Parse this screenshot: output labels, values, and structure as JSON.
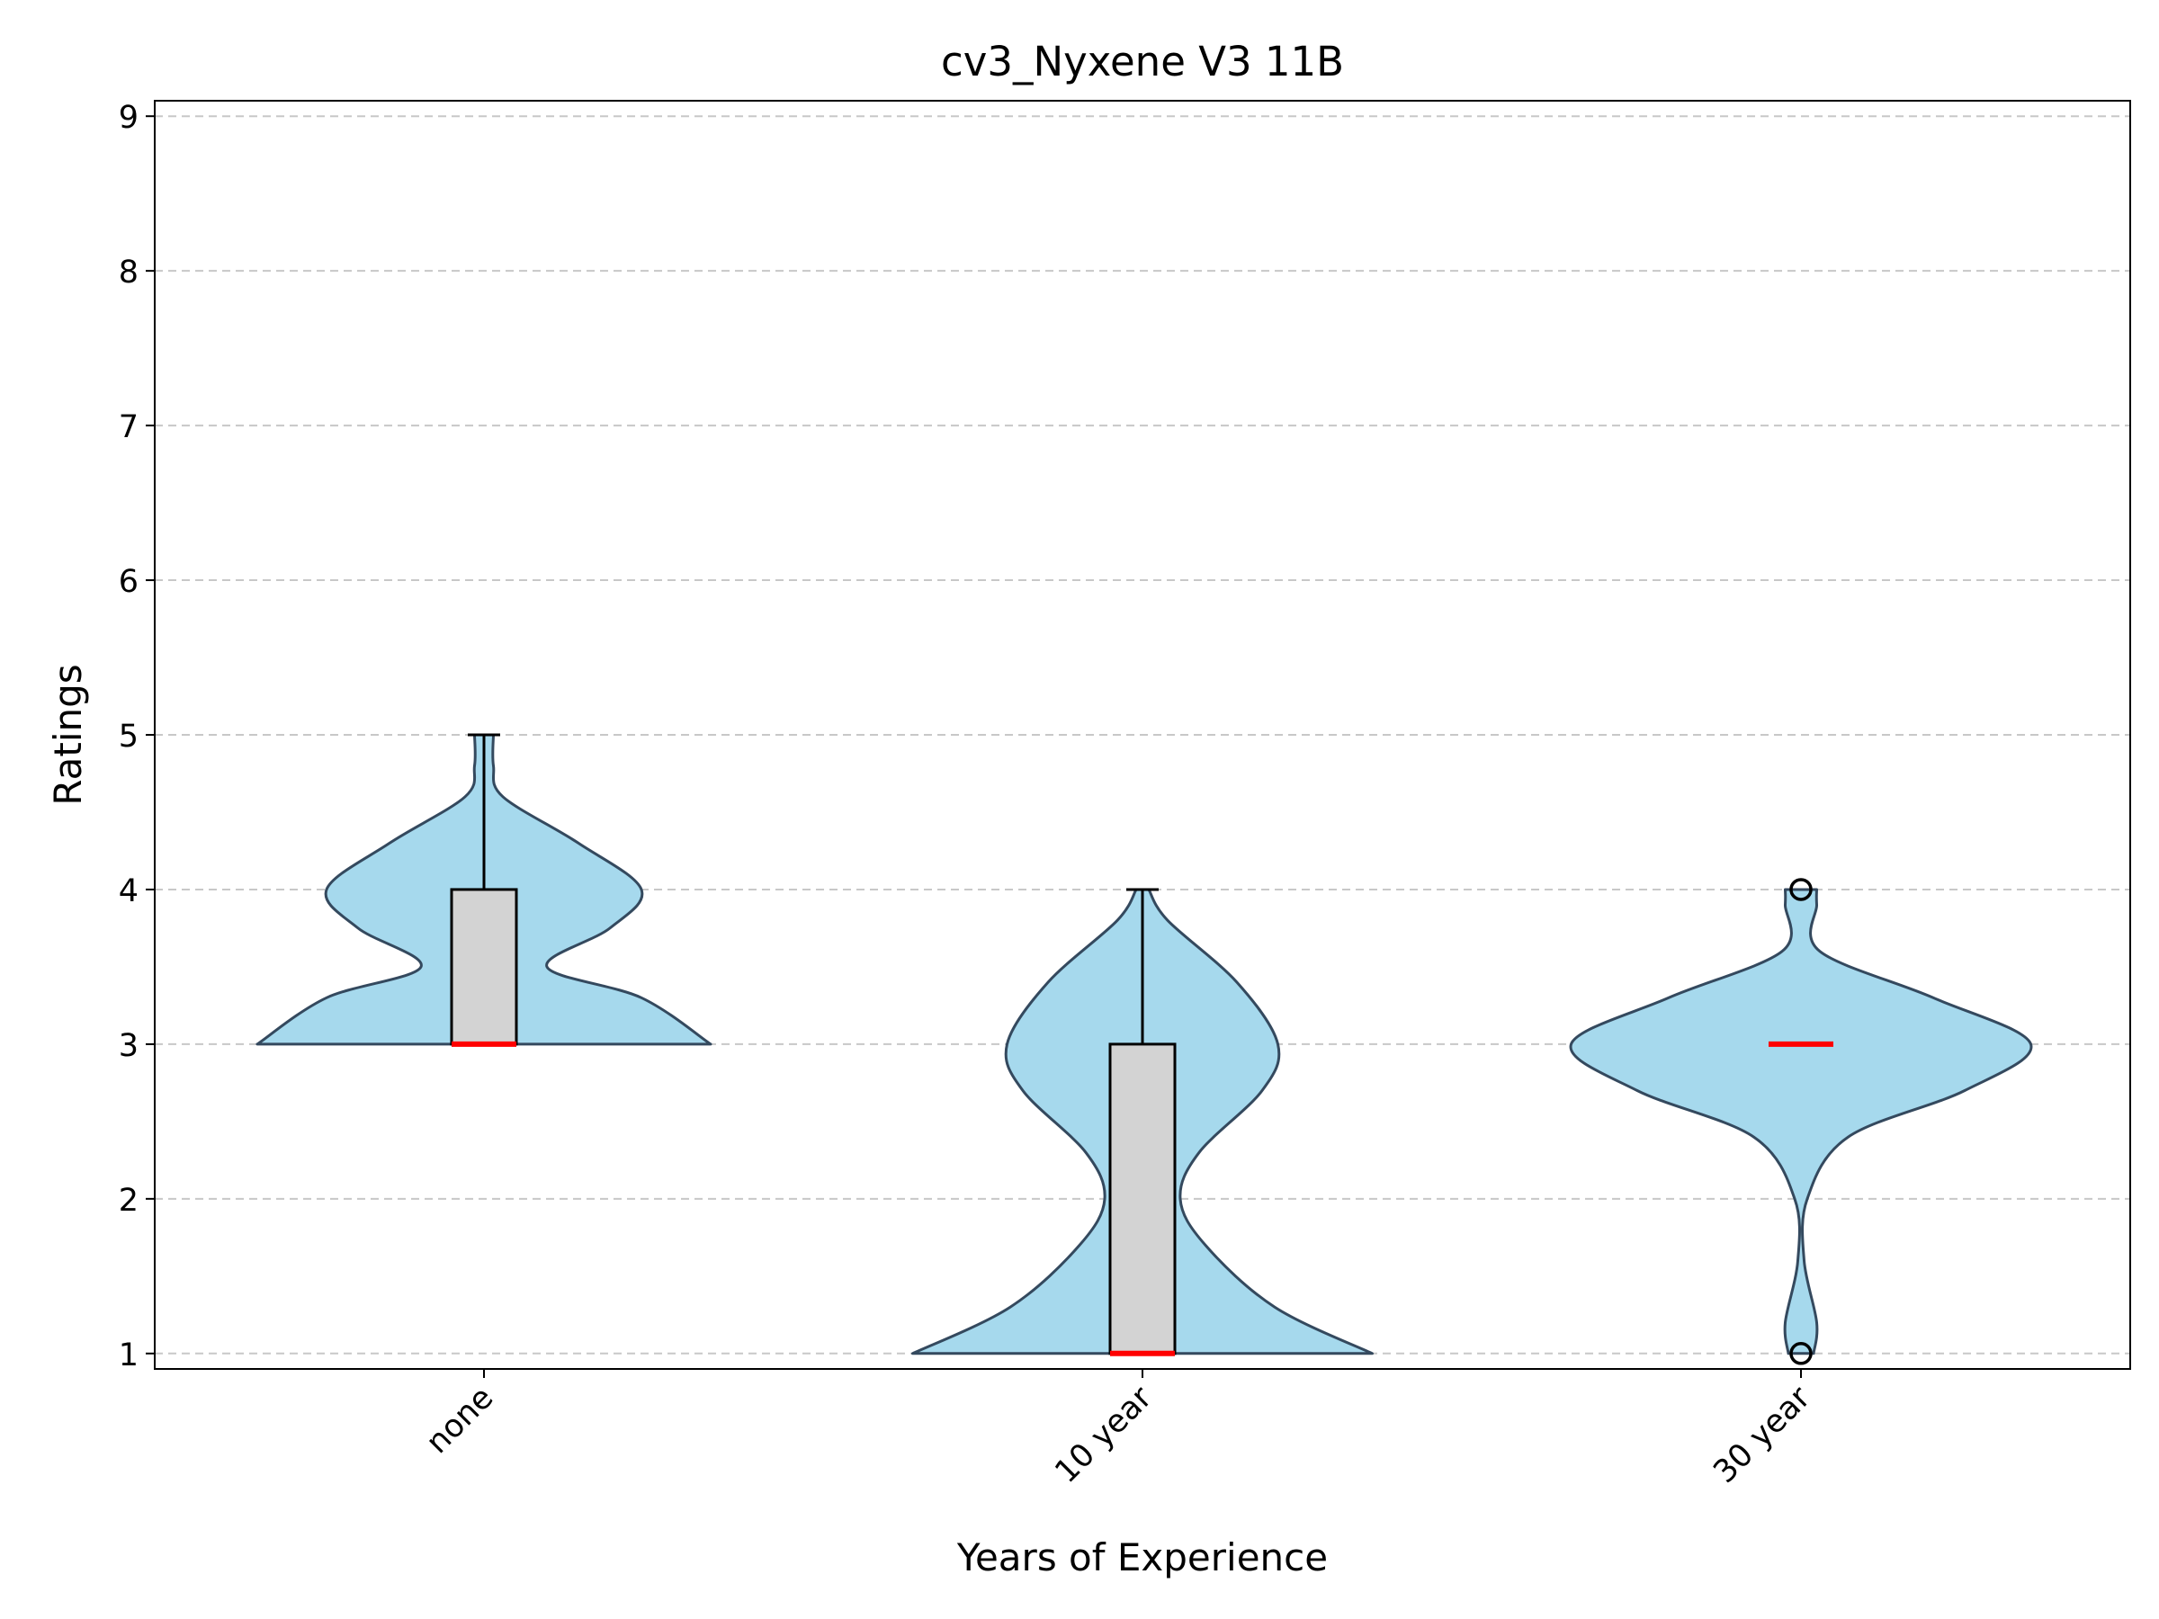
{
  "chart_data": {
    "type": "violin",
    "title": "cv3_Nyxene V3 11B",
    "xlabel": "Years of Experience",
    "ylabel": "Ratings",
    "ylim": [
      0.9,
      9.1
    ],
    "yticks": [
      1,
      2,
      3,
      4,
      5,
      6,
      7,
      8,
      9
    ],
    "grid": "y-dashed",
    "categories": [
      "none",
      "10 year",
      "30 year"
    ],
    "series": [
      {
        "category": "none",
        "density": [
          [
            3.0,
            0.72
          ],
          [
            3.3,
            0.5
          ],
          [
            3.5,
            0.2
          ],
          [
            3.75,
            0.4
          ],
          [
            4.0,
            0.5
          ],
          [
            4.3,
            0.3
          ],
          [
            4.6,
            0.06
          ],
          [
            4.8,
            0.03
          ],
          [
            5.0,
            0.03
          ]
        ],
        "box": {
          "q1": 3,
          "median": 3,
          "q3": 4,
          "whisker_low": 3,
          "whisker_high": 5
        },
        "outliers": []
      },
      {
        "category": "10 year",
        "density": [
          [
            1.0,
            0.73
          ],
          [
            1.3,
            0.42
          ],
          [
            1.7,
            0.2
          ],
          [
            2.0,
            0.12
          ],
          [
            2.3,
            0.18
          ],
          [
            2.7,
            0.38
          ],
          [
            3.0,
            0.43
          ],
          [
            3.4,
            0.3
          ],
          [
            3.8,
            0.08
          ],
          [
            4.0,
            0.02
          ]
        ],
        "box": {
          "q1": 1,
          "median": 1,
          "q3": 3,
          "whisker_low": 1,
          "whisker_high": 4
        },
        "outliers": []
      },
      {
        "category": "30 year",
        "density": [
          [
            1.0,
            0.04
          ],
          [
            1.2,
            0.05
          ],
          [
            1.6,
            0.01
          ],
          [
            2.0,
            0.02
          ],
          [
            2.4,
            0.15
          ],
          [
            2.7,
            0.52
          ],
          [
            3.0,
            0.73
          ],
          [
            3.3,
            0.42
          ],
          [
            3.6,
            0.06
          ],
          [
            3.9,
            0.05
          ],
          [
            4.0,
            0.05
          ]
        ],
        "box": {
          "q1": 3,
          "median": 3,
          "q3": 3,
          "whisker_low": 3,
          "whisker_high": 3
        },
        "outliers": [
          4,
          1
        ]
      }
    ],
    "colors": {
      "violin_fill": "#a6d9ed",
      "violin_edge": "#34495e",
      "box_fill": "#d3d3d3",
      "median": "#ff0000",
      "grid": "#c8c8c8"
    }
  }
}
